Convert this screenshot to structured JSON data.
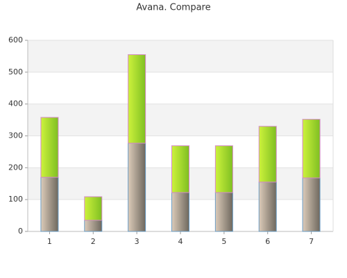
{
  "chart_data": {
    "type": "stacked_bar",
    "title": "Avana. Compare",
    "categories": [
      "1",
      "2",
      "3",
      "4",
      "5",
      "6",
      "7"
    ],
    "series": [
      {
        "color": [
          "#dccbb9",
          "#6e685e"
        ],
        "border": "#6a9cc4",
        "values": [
          170,
          35,
          277,
          122,
          122,
          155,
          168
        ]
      },
      {
        "color": [
          "#cdf23c",
          "#7fbf22"
        ],
        "border": "#d487c8",
        "values": [
          188,
          74,
          278,
          147,
          147,
          175,
          184
        ]
      }
    ],
    "ylim": [
      0,
      600
    ],
    "yticks": [
      0,
      100,
      200,
      300,
      400,
      500,
      600
    ],
    "grid": true,
    "bands": true
  }
}
